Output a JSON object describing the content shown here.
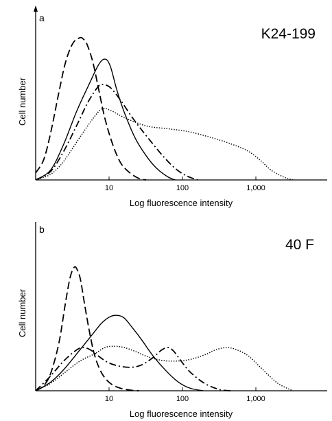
{
  "chart_data": [
    {
      "type": "line",
      "panel_label": "a",
      "annotation": "K24-199",
      "xlabel": "Log fluorescence intensity",
      "ylabel": "Cell number",
      "xscale": "log",
      "xlim": [
        1.25,
        8000
      ],
      "ylim": [
        0,
        1
      ],
      "x_ticks": [
        10,
        100,
        1000
      ],
      "x_tick_labels": [
        "10",
        "100",
        "1,000"
      ],
      "grid": false,
      "series": [
        {
          "line_style": "dashed",
          "x": [
            1.25,
            1.6,
            2,
            2.6,
            3.2,
            4,
            5,
            5.6,
            6.3,
            7.5,
            9,
            11,
            14,
            18,
            24,
            32,
            40
          ],
          "y": [
            0.05,
            0.14,
            0.33,
            0.62,
            0.83,
            0.96,
            1.0,
            0.99,
            0.95,
            0.83,
            0.64,
            0.43,
            0.25,
            0.12,
            0.05,
            0.01,
            0.0
          ]
        },
        {
          "line_style": "solid",
          "x": [
            1.25,
            2,
            3,
            4.5,
            6.5,
            9,
            11,
            13,
            16,
            20,
            28,
            40,
            56,
            80,
            100
          ],
          "y": [
            0.0,
            0.07,
            0.25,
            0.48,
            0.66,
            0.81,
            0.85,
            0.8,
            0.63,
            0.48,
            0.3,
            0.17,
            0.08,
            0.02,
            0.0
          ]
        },
        {
          "line_style": "dash-dot",
          "x": [
            1.25,
            2,
            3,
            4.5,
            6.5,
            9,
            10.5,
            13,
            18,
            25,
            35,
            50,
            70,
            100,
            140,
            200
          ],
          "y": [
            0.0,
            0.06,
            0.2,
            0.38,
            0.55,
            0.66,
            0.67,
            0.65,
            0.56,
            0.45,
            0.35,
            0.25,
            0.16,
            0.08,
            0.03,
            0.0
          ]
        },
        {
          "line_style": "dotted",
          "x": [
            1.25,
            2,
            3,
            5,
            7.5,
            10,
            13,
            20,
            40,
            80,
            150,
            300,
            600,
            1000,
            1500,
            2000,
            3000,
            4000
          ],
          "y": [
            0.0,
            0.04,
            0.13,
            0.3,
            0.43,
            0.5,
            0.49,
            0.44,
            0.38,
            0.36,
            0.34,
            0.3,
            0.25,
            0.2,
            0.13,
            0.07,
            0.02,
            0.0
          ]
        }
      ]
    },
    {
      "type": "line",
      "panel_label": "b",
      "annotation": "40 F",
      "xlabel": "Log fluorescence intensity",
      "ylabel": "Cell number",
      "xscale": "log",
      "xlim": [
        1.25,
        8000
      ],
      "ylim": [
        0,
        1
      ],
      "x_ticks": [
        10,
        100,
        1000
      ],
      "x_tick_labels": [
        "10",
        "100",
        "1,000"
      ],
      "grid": false,
      "series": [
        {
          "line_style": "dashed",
          "x": [
            1.25,
            1.6,
            2,
            2.6,
            3.2,
            3.7,
            4.2,
            4.6,
            5.1,
            5.8,
            6.8,
            8,
            10,
            13,
            18,
            25,
            32
          ],
          "y": [
            0.0,
            0.04,
            0.14,
            0.39,
            0.72,
            0.92,
            1.0,
            0.98,
            0.9,
            0.7,
            0.47,
            0.28,
            0.14,
            0.06,
            0.02,
            0.005,
            0.0
          ]
        },
        {
          "line_style": "solid",
          "x": [
            1.25,
            2,
            3,
            5,
            7.5,
            10,
            13,
            16,
            20,
            26,
            35,
            50,
            75,
            110,
            160,
            240
          ],
          "y": [
            0.0,
            0.07,
            0.17,
            0.33,
            0.46,
            0.55,
            0.6,
            0.61,
            0.59,
            0.51,
            0.41,
            0.28,
            0.16,
            0.07,
            0.02,
            0.0
          ]
        },
        {
          "line_style": "dash-dot",
          "x": [
            1.25,
            2,
            3,
            4.5,
            5.6,
            7,
            9,
            12,
            17,
            25,
            35,
            50,
            65,
            80,
            95,
            120,
            160,
            250,
            400,
            600
          ],
          "y": [
            0.0,
            0.12,
            0.24,
            0.33,
            0.35,
            0.33,
            0.28,
            0.23,
            0.2,
            0.19,
            0.21,
            0.27,
            0.33,
            0.35,
            0.32,
            0.24,
            0.15,
            0.06,
            0.01,
            0.0
          ]
        },
        {
          "line_style": "dotted",
          "x": [
            1.25,
            2,
            3,
            5,
            8,
            11,
            15,
            20,
            28,
            40,
            60,
            90,
            150,
            250,
            350,
            500,
            700,
            1000,
            1500,
            2500,
            4000
          ],
          "y": [
            0.0,
            0.06,
            0.14,
            0.24,
            0.3,
            0.35,
            0.36,
            0.35,
            0.32,
            0.28,
            0.25,
            0.24,
            0.25,
            0.29,
            0.33,
            0.35,
            0.33,
            0.28,
            0.18,
            0.06,
            0.0
          ]
        }
      ]
    }
  ]
}
